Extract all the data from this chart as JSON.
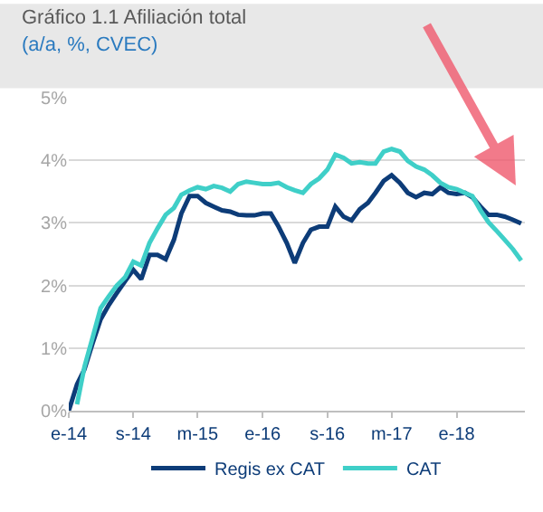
{
  "chart_data": {
    "type": "line",
    "title": "Gráfico 1.1 Afiliación total",
    "subtitle": "(a/a, %, CVEC)",
    "x": [
      "2014-01",
      "2014-02",
      "2014-03",
      "2014-04",
      "2014-05",
      "2014-06",
      "2014-07",
      "2014-08",
      "2014-09",
      "2014-10",
      "2014-11",
      "2014-12",
      "2015-01",
      "2015-02",
      "2015-03",
      "2015-04",
      "2015-05",
      "2015-06",
      "2015-07",
      "2015-08",
      "2015-09",
      "2015-10",
      "2015-11",
      "2015-12",
      "2016-01",
      "2016-02",
      "2016-03",
      "2016-04",
      "2016-05",
      "2016-06",
      "2016-07",
      "2016-08",
      "2016-09",
      "2016-10",
      "2016-11",
      "2016-12",
      "2017-01",
      "2017-02",
      "2017-03",
      "2017-04",
      "2017-05",
      "2017-06",
      "2017-07",
      "2017-08",
      "2017-09",
      "2017-10",
      "2017-11",
      "2017-12",
      "2018-01",
      "2018-02",
      "2018-03",
      "2018-04",
      "2018-05",
      "2018-06",
      "2018-07",
      "2018-08",
      "2018-09"
    ],
    "series": [
      {
        "name": "Regis ex CAT",
        "color": "#0d3c78",
        "values": [
          0.0,
          0.42,
          0.66,
          1.08,
          1.46,
          1.69,
          1.88,
          2.07,
          2.25,
          2.1,
          2.49,
          2.49,
          2.42,
          2.73,
          3.15,
          3.43,
          3.43,
          3.32,
          3.26,
          3.2,
          3.18,
          3.13,
          3.12,
          3.12,
          3.15,
          3.15,
          2.94,
          2.68,
          2.36,
          2.68,
          2.89,
          2.94,
          2.94,
          3.26,
          3.1,
          3.04,
          3.22,
          3.32,
          3.48,
          3.67,
          3.76,
          3.64,
          3.48,
          3.41,
          3.48,
          3.46,
          3.57,
          3.48,
          3.46,
          3.48,
          3.41,
          3.26,
          3.13,
          3.13,
          3.1,
          3.05,
          2.99
        ]
      },
      {
        "name": "CAT",
        "color": "#3fcfc8",
        "values": [
          null,
          0.1,
          0.7,
          1.17,
          1.64,
          1.83,
          2.0,
          2.13,
          2.38,
          2.32,
          2.68,
          2.91,
          3.13,
          3.24,
          3.45,
          3.52,
          3.57,
          3.54,
          3.59,
          3.56,
          3.5,
          3.62,
          3.66,
          3.64,
          3.62,
          3.62,
          3.64,
          3.57,
          3.52,
          3.48,
          3.62,
          3.71,
          3.85,
          4.09,
          4.04,
          3.95,
          3.97,
          3.95,
          3.95,
          4.14,
          4.18,
          4.14,
          3.99,
          3.9,
          3.85,
          3.76,
          3.64,
          3.57,
          3.54,
          3.48,
          3.43,
          3.2,
          3.01,
          2.87,
          2.73,
          2.58,
          2.4
        ]
      }
    ],
    "xlim": [
      "2014-01-01",
      "2018-09-15"
    ],
    "xticks": [
      {
        "value": "2014-01",
        "label": "e-14"
      },
      {
        "value": "2014-09",
        "label": "s-14"
      },
      {
        "value": "2015-05",
        "label": "m-15"
      },
      {
        "value": "2016-01",
        "label": "e-16"
      },
      {
        "value": "2016-09",
        "label": "s-16"
      },
      {
        "value": "2017-05",
        "label": "m-17"
      },
      {
        "value": "2018-01",
        "label": "e-18"
      }
    ],
    "ylim": [
      0,
      5
    ],
    "yticks": [
      {
        "value": 0,
        "label": "0%"
      },
      {
        "value": 1,
        "label": "1%"
      },
      {
        "value": 2,
        "label": "2%"
      },
      {
        "value": 3,
        "label": "3%"
      },
      {
        "value": 4,
        "label": "4%"
      },
      {
        "value": 5,
        "label": "5%"
      }
    ],
    "grid": "y",
    "legend": "bottom",
    "marker": "none",
    "line_style": "solid"
  }
}
